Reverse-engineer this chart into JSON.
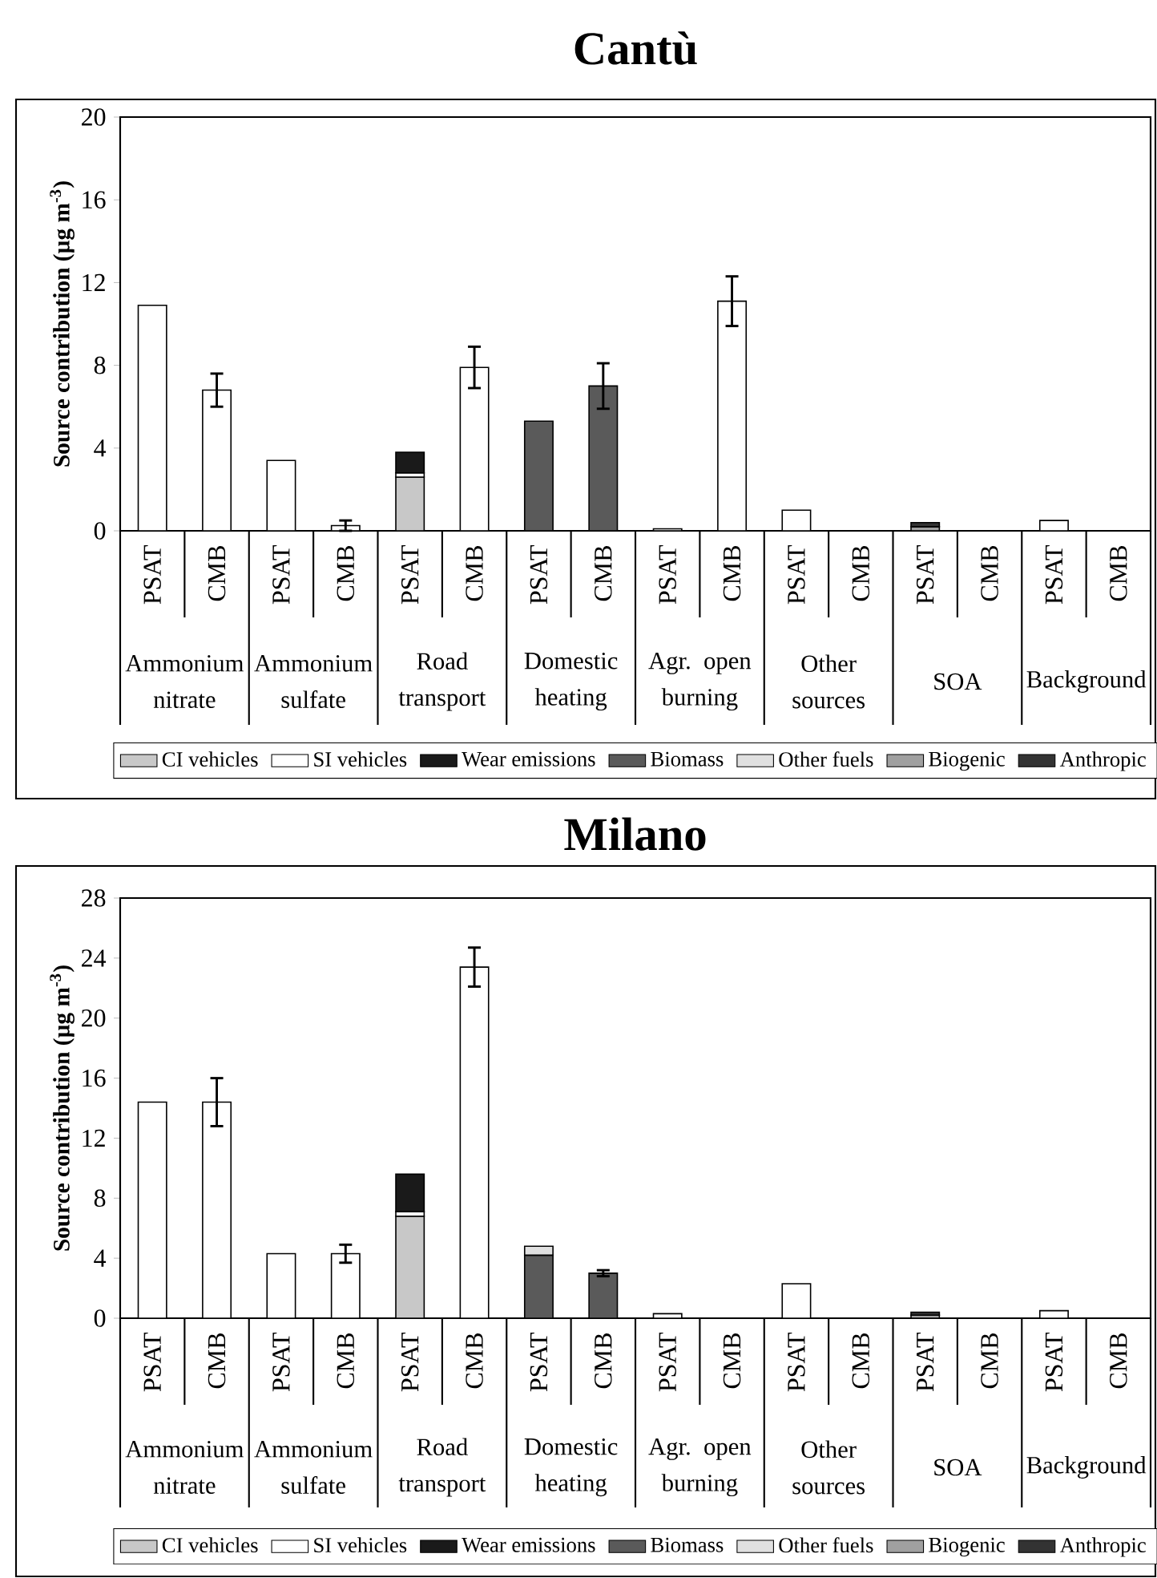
{
  "chart_data": [
    {
      "type": "bar",
      "title": "Cantù",
      "ylabel": "Source contribution (µg m$^{-3}$)",
      "stacked": true,
      "legend": "bottom",
      "categories": [
        "PSAT",
        "CMB",
        "PSAT",
        "CMB",
        "PSAT",
        "CMB",
        "PSAT",
        "CMB",
        "PSAT",
        "CMB",
        "PSAT",
        "CMB",
        "PSAT",
        "CMB",
        "PSAT",
        "CMB"
      ],
      "annotations": [
        "Ammonium nitrate",
        "Ammonium sulfate",
        "Road transport",
        "Domestic heating",
        "Agr. open burning",
        "Other sources",
        "SOA",
        "Background"
      ],
      "ylim": [
        0,
        20
      ],
      "yticks": [
        0,
        4,
        8,
        12,
        16,
        20
      ],
      "series": [
        {
          "color": "#ffffff",
          "values": [
            10.9,
            6.8,
            3.4,
            0.25,
            null,
            7.9,
            null,
            null,
            0.1,
            11.1,
            1.0,
            null,
            null,
            null,
            0.5,
            null
          ],
          "errors": [
            null,
            0.8,
            null,
            0.25,
            null,
            1.0,
            null,
            null,
            null,
            1.2,
            null,
            null,
            null,
            null,
            null,
            null
          ]
        },
        {
          "name": "CI vehicles",
          "color": "#c8c8c8",
          "values": [
            null,
            null,
            null,
            null,
            2.6,
            null,
            null,
            null,
            null,
            null,
            null,
            null,
            null,
            null,
            null,
            null
          ]
        },
        {
          "name": "SI vehicles",
          "color": "#ffffff",
          "values": [
            null,
            null,
            null,
            null,
            0.2,
            null,
            null,
            null,
            null,
            null,
            null,
            null,
            null,
            null,
            null,
            null
          ]
        },
        {
          "name": "Wear emissions",
          "color": "#1a1a1a",
          "values": [
            null,
            null,
            null,
            null,
            1.0,
            null,
            null,
            null,
            null,
            null,
            null,
            null,
            null,
            null,
            null,
            null
          ]
        },
        {
          "name": "Biomass",
          "color": "#5a5a5a",
          "values": [
            null,
            null,
            null,
            null,
            null,
            null,
            5.3,
            7.0,
            null,
            null,
            null,
            null,
            null,
            null,
            null,
            null
          ],
          "errors": [
            null,
            null,
            null,
            null,
            null,
            null,
            null,
            1.1,
            null,
            null,
            null,
            null,
            null,
            null,
            null,
            null
          ]
        },
        {
          "name": "Other fuels",
          "color": "#e0e0e0",
          "values": [
            null,
            null,
            null,
            null,
            null,
            null,
            null,
            null,
            null,
            null,
            null,
            null,
            null,
            null,
            null,
            null
          ]
        },
        {
          "name": "Biogenic",
          "color": "#a0a0a0",
          "values": [
            null,
            null,
            null,
            null,
            null,
            null,
            null,
            null,
            null,
            null,
            null,
            null,
            0.2,
            null,
            null,
            null
          ]
        },
        {
          "name": "Anthropic",
          "color": "#333333",
          "values": [
            null,
            null,
            null,
            null,
            null,
            null,
            null,
            null,
            null,
            null,
            null,
            null,
            0.2,
            null,
            null,
            null
          ]
        }
      ]
    },
    {
      "type": "bar",
      "title": "Milano",
      "ylabel": "Source contribution (µg m$^{-3}$)",
      "stacked": true,
      "legend": "bottom",
      "categories": [
        "PSAT",
        "CMB",
        "PSAT",
        "CMB",
        "PSAT",
        "CMB",
        "PSAT",
        "CMB",
        "PSAT",
        "CMB",
        "PSAT",
        "CMB",
        "PSAT",
        "CMB",
        "PSAT",
        "CMB"
      ],
      "annotations": [
        "Ammonium nitrate",
        "Ammonium sulfate",
        "Road transport",
        "Domestic heating",
        "Agr. open burning",
        "Other sources",
        "SOA",
        "Background"
      ],
      "ylim": [
        0,
        28
      ],
      "yticks": [
        0,
        4,
        8,
        12,
        16,
        20,
        24,
        28
      ],
      "series": [
        {
          "color": "#ffffff",
          "values": [
            14.4,
            14.4,
            4.3,
            4.3,
            null,
            23.4,
            null,
            null,
            0.3,
            null,
            2.3,
            null,
            null,
            null,
            0.5,
            null
          ],
          "errors": [
            null,
            1.6,
            null,
            0.6,
            null,
            1.3,
            null,
            null,
            null,
            null,
            null,
            null,
            null,
            null,
            null,
            null
          ]
        },
        {
          "name": "CI vehicles",
          "color": "#c8c8c8",
          "values": [
            null,
            null,
            null,
            null,
            6.8,
            null,
            null,
            null,
            null,
            null,
            null,
            null,
            null,
            null,
            null,
            null
          ]
        },
        {
          "name": "SI vehicles",
          "color": "#ffffff",
          "values": [
            null,
            null,
            null,
            null,
            0.3,
            null,
            null,
            null,
            null,
            null,
            null,
            null,
            null,
            null,
            null,
            null
          ]
        },
        {
          "name": "Wear emissions",
          "color": "#1a1a1a",
          "values": [
            null,
            null,
            null,
            null,
            2.5,
            null,
            null,
            null,
            null,
            null,
            null,
            null,
            null,
            null,
            null,
            null
          ]
        },
        {
          "name": "Biomass",
          "color": "#5a5a5a",
          "values": [
            null,
            null,
            null,
            null,
            null,
            null,
            4.2,
            3.0,
            null,
            null,
            null,
            null,
            null,
            null,
            null,
            null
          ],
          "errors": [
            null,
            null,
            null,
            null,
            null,
            null,
            null,
            0.2,
            null,
            null,
            null,
            null,
            null,
            null,
            null,
            null
          ]
        },
        {
          "name": "Other fuels",
          "color": "#e0e0e0",
          "values": [
            null,
            null,
            null,
            null,
            null,
            null,
            0.6,
            null,
            null,
            null,
            null,
            null,
            null,
            null,
            null,
            null
          ]
        },
        {
          "name": "Biogenic",
          "color": "#a0a0a0",
          "values": [
            null,
            null,
            null,
            null,
            null,
            null,
            null,
            null,
            null,
            null,
            null,
            null,
            0.2,
            null,
            null,
            null
          ]
        },
        {
          "name": "Anthropic",
          "color": "#333333",
          "values": [
            null,
            null,
            null,
            null,
            null,
            null,
            null,
            null,
            null,
            null,
            null,
            null,
            0.2,
            null,
            null,
            null
          ]
        }
      ]
    }
  ]
}
